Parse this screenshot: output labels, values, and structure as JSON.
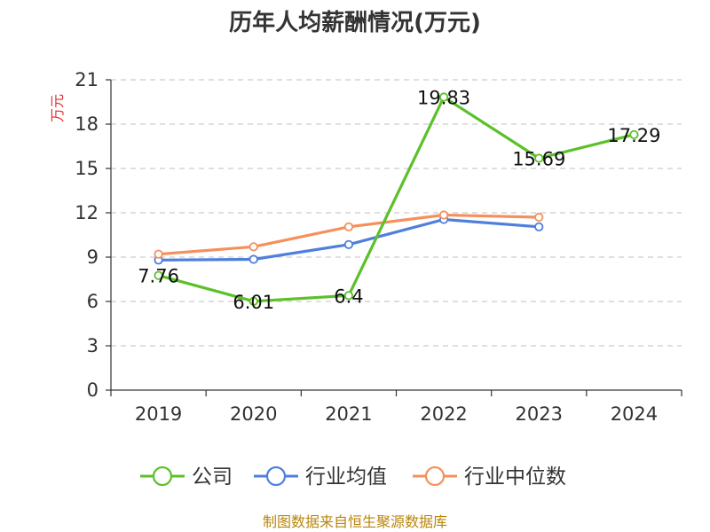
{
  "footer": {
    "source": "制图数据来自恒生聚源数据库",
    "color": "#b8860b"
  },
  "chart_data": {
    "type": "line",
    "title": "历年人均薪酬情况(万元)",
    "ylabel": "万元",
    "ylabel_color": "#e03030",
    "xlabel": "",
    "categories": [
      "2019",
      "2020",
      "2021",
      "2022",
      "2023",
      "2024"
    ],
    "yticks": [
      0,
      3,
      6,
      9,
      12,
      15,
      18,
      21
    ],
    "ylim": [
      0,
      21
    ],
    "grid": true,
    "legend_position": "bottom-center",
    "series": [
      {
        "name": "公司",
        "color": "#5cc02a",
        "values": [
          7.76,
          6.01,
          6.4,
          19.83,
          15.69,
          17.29
        ],
        "labels": [
          "7.76",
          "6.01",
          "6.4",
          "19.83",
          "15.69",
          "17.29"
        ]
      },
      {
        "name": "行业均值",
        "color": "#4f7fdc",
        "values": [
          8.8,
          8.85,
          9.85,
          11.55,
          11.05,
          null
        ]
      },
      {
        "name": "行业中位数",
        "color": "#f5905c",
        "values": [
          9.2,
          9.7,
          11.05,
          11.85,
          11.7,
          null
        ]
      }
    ]
  }
}
